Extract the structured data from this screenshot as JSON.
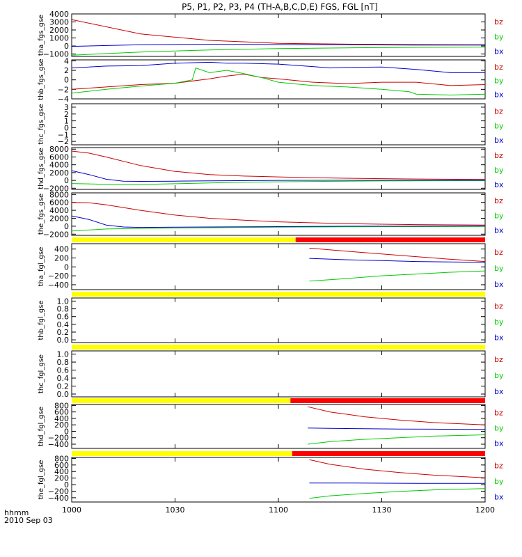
{
  "title": "P5, P1, P2, P3, P4 (TH-A,B,C,D,E) FGS, FGL [nT]",
  "colors": {
    "bx": "#0000cc",
    "by": "#00cc00",
    "bz": "#cc0000",
    "bar_yellow": "#ffff00",
    "bar_red": "#ff0000"
  },
  "footer": {
    "line1": "hhmm",
    "line2": "2010 Sep 03"
  },
  "chart_data": {
    "type": "line",
    "x_axis": {
      "ticks": [
        "1000",
        "1030",
        "1100",
        "1130",
        "1200"
      ],
      "range_minutes": [
        0,
        120
      ]
    },
    "legend": [
      "bz",
      "by",
      "bx"
    ],
    "panels": [
      {
        "name": "tha-fgs-gse",
        "ylabel": "tha_fgs_gse",
        "ylim": [
          -1300,
          4000
        ],
        "yticks": [
          "4000",
          "3000",
          "2000",
          "1000",
          "0",
          "−1000"
        ],
        "ytick_values": [
          4000,
          3000,
          2000,
          1000,
          0,
          -1000
        ],
        "series": [
          {
            "name": "bz",
            "x": [
              0,
              20,
              40,
              60,
              80,
              100,
              120
            ],
            "y": [
              3300,
              1500,
              700,
              330,
              230,
              180,
              150
            ]
          },
          {
            "name": "by",
            "x": [
              0,
              20,
              40,
              60,
              80,
              100,
              120
            ],
            "y": [
              -1150,
              -750,
              -500,
              -330,
              -230,
              -170,
              -140
            ]
          },
          {
            "name": "bx",
            "x": [
              0,
              20,
              40,
              60,
              80,
              100,
              120
            ],
            "y": [
              -50,
              150,
              210,
              180,
              150,
              120,
              120
            ]
          }
        ]
      },
      {
        "name": "thb-fgs-gse",
        "ylabel": "thb_fgs_gse",
        "ylim": [
          -4,
          4.2
        ],
        "yticks": [
          "4",
          "2",
          "0",
          "−2",
          "−4"
        ],
        "ytick_values": [
          4,
          2,
          0,
          -2,
          -4
        ],
        "series": [
          {
            "name": "bz",
            "x": [
              0,
              10,
              20,
              30,
              40,
              45,
              50,
              55,
              60,
              70,
              80,
              90,
              100,
              110,
              120
            ],
            "y": [
              -2,
              -1.5,
              -1,
              -0.7,
              0.2,
              0.8,
              1.2,
              0.5,
              0.2,
              -0.5,
              -0.8,
              -0.5,
              -0.5,
              -1.2,
              -1
            ]
          },
          {
            "name": "by",
            "x": [
              0,
              10,
              20,
              30,
              35,
              36,
              40,
              45,
              50,
              55,
              60,
              70,
              80,
              90,
              98,
              100,
              110,
              120
            ],
            "y": [
              -2.8,
              -2,
              -1.3,
              -0.7,
              0,
              2.5,
              1.5,
              2,
              1.3,
              0.5,
              -0.5,
              -1.2,
              -1.5,
              -2,
              -2.5,
              -3,
              -3.2,
              -3
            ]
          },
          {
            "name": "bx",
            "x": [
              0,
              10,
              20,
              30,
              40,
              45,
              50,
              60,
              70,
              75,
              80,
              90,
              100,
              110,
              120
            ],
            "y": [
              2.5,
              2.9,
              3,
              3.5,
              3.7,
              3.5,
              3.5,
              3.3,
              2.8,
              2.5,
              2.6,
              2.7,
              2.2,
              1.5,
              1.5
            ]
          }
        ]
      },
      {
        "name": "thc-fgs-gse",
        "ylabel": "thc_fgs_gse",
        "ylim": [
          -2.5,
          3.5
        ],
        "yticks": [
          "3",
          "2",
          "1",
          "0",
          "−1",
          "−2"
        ],
        "ytick_values": [
          3,
          2,
          1,
          0,
          -1,
          -2
        ],
        "series": []
      },
      {
        "name": "thd-fgs-gse",
        "ylabel": "thd_fgs_gse",
        "ylim": [
          -2300,
          8400
        ],
        "yticks": [
          "8000",
          "6000",
          "4000",
          "2000",
          "0",
          "−2000"
        ],
        "ytick_values": [
          8000,
          6000,
          4000,
          2000,
          0,
          -2000
        ],
        "series": [
          {
            "name": "bz",
            "x": [
              0,
              5,
              10,
              20,
              30,
              40,
              50,
              60,
              70,
              80,
              90,
              100,
              120
            ],
            "y": [
              7500,
              7000,
              6000,
              3800,
              2300,
              1500,
              1100,
              900,
              700,
              550,
              450,
              350,
              250
            ]
          },
          {
            "name": "by",
            "x": [
              0,
              10,
              20,
              30,
              40,
              50,
              60,
              70,
              80,
              90,
              100,
              120
            ],
            "y": [
              -800,
              -1000,
              -1050,
              -850,
              -650,
              -450,
              -350,
              -270,
              -200,
              -150,
              -110,
              -70
            ]
          },
          {
            "name": "bx",
            "x": [
              0,
              5,
              10,
              15,
              20,
              30,
              40,
              60,
              80,
              100,
              120
            ],
            "y": [
              2500,
              1500,
              300,
              -200,
              -250,
              -200,
              -100,
              0,
              30,
              40,
              50
            ]
          }
        ]
      },
      {
        "name": "the-fgs-gse",
        "ylabel": "the_fgs_gse",
        "ylim": [
          -2300,
          8400
        ],
        "yticks": [
          "8000",
          "6000",
          "4000",
          "2000",
          "0",
          "−2000"
        ],
        "ytick_values": [
          8000,
          6000,
          4000,
          2000,
          0,
          -2000
        ],
        "series": [
          {
            "name": "bz",
            "x": [
              0,
              5,
              10,
              20,
              30,
              40,
              50,
              60,
              70,
              80,
              90,
              100,
              120
            ],
            "y": [
              6000,
              5900,
              5400,
              4000,
              2800,
              2000,
              1500,
              1100,
              850,
              650,
              500,
              400,
              300
            ]
          },
          {
            "name": "by",
            "x": [
              0,
              10,
              20,
              30,
              40,
              50,
              60,
              70,
              80,
              90,
              100,
              120
            ],
            "y": [
              -1200,
              -700,
              -550,
              -450,
              -380,
              -300,
              -250,
              -200,
              -160,
              -120,
              -100,
              -80
            ]
          },
          {
            "name": "bx",
            "x": [
              0,
              5,
              10,
              15,
              20,
              30,
              40,
              60,
              80,
              100,
              120
            ],
            "y": [
              2600,
              1700,
              300,
              -200,
              -300,
              -250,
              -200,
              -100,
              0,
              40,
              60
            ]
          }
        ]
      },
      {
        "name": "tha-fgl-gse",
        "ylabel": "tha_fgl_gse",
        "ylim": [
          -510,
          520
        ],
        "bar_split_minutes": 65,
        "yticks": [
          "400",
          "200",
          "0",
          "−200",
          "−400"
        ],
        "ytick_values": [
          400,
          200,
          0,
          -200,
          -400
        ],
        "series": [
          {
            "name": "bz",
            "x": [
              69,
              80,
              90,
              100,
              110,
              120
            ],
            "y": [
              420,
              350,
              290,
              230,
              170,
              120
            ]
          },
          {
            "name": "by",
            "x": [
              69,
              80,
              90,
              100,
              110,
              120
            ],
            "y": [
              -320,
              -260,
              -200,
              -160,
              -120,
              -90
            ]
          },
          {
            "name": "bx",
            "x": [
              69,
              80,
              90,
              100,
              110,
              120
            ],
            "y": [
              190,
              160,
              140,
              120,
              110,
              100
            ]
          }
        ]
      },
      {
        "name": "thb-fgl-gse",
        "ylabel": "thb_fgl_gse",
        "ylim": [
          -0.07,
          1.08
        ],
        "bar_split_minutes": null,
        "yticks": [
          "1.0",
          "0.8",
          "0.6",
          "0.4",
          "0.2",
          "0.0"
        ],
        "ytick_values": [
          1.0,
          0.8,
          0.6,
          0.4,
          0.2,
          0.0
        ],
        "series": []
      },
      {
        "name": "thc-fgl-gse",
        "ylabel": "thc_fgl_gse",
        "ylim": [
          -0.07,
          1.08
        ],
        "bar_split_minutes": null,
        "yticks": [
          "1.0",
          "0.8",
          "0.6",
          "0.4",
          "0.2",
          "0.0"
        ],
        "ytick_values": [
          1.0,
          0.8,
          0.6,
          0.4,
          0.2,
          0.0
        ],
        "series": []
      },
      {
        "name": "thd-fgl-gse",
        "ylabel": "thd_fgl_gse",
        "ylim": [
          -530,
          830
        ],
        "bar_split_minutes": 63.5,
        "yticks": [
          "800",
          "600",
          "400",
          "200",
          "0",
          "−200",
          "−400"
        ],
        "ytick_values": [
          800,
          600,
          400,
          200,
          0,
          -200,
          -400
        ],
        "series": [
          {
            "name": "bz",
            "x": [
              68.5,
              75,
              85,
              95,
              105,
              120
            ],
            "y": [
              760,
              600,
              450,
              350,
              270,
              200
            ]
          },
          {
            "name": "by",
            "x": [
              68.5,
              75,
              85,
              95,
              105,
              120
            ],
            "y": [
              -400,
              -320,
              -250,
              -200,
              -150,
              -110
            ]
          },
          {
            "name": "bx",
            "x": [
              68.5,
              75,
              85,
              95,
              105,
              120
            ],
            "y": [
              100,
              90,
              80,
              70,
              65,
              60
            ]
          }
        ]
      },
      {
        "name": "the-fgl-gse",
        "ylabel": "the_fgl_gse",
        "ylim": [
          -530,
          830
        ],
        "bar_split_minutes": 64,
        "yticks": [
          "800",
          "600",
          "400",
          "200",
          "0",
          "−200",
          "−400"
        ],
        "ytick_values": [
          800,
          600,
          400,
          200,
          0,
          -200,
          -400
        ],
        "series": [
          {
            "name": "bz",
            "x": [
              69,
              75,
              85,
              95,
              105,
              120
            ],
            "y": [
              760,
              620,
              470,
              370,
              290,
              210
            ]
          },
          {
            "name": "by",
            "x": [
              69,
              75,
              85,
              95,
              105,
              120
            ],
            "y": [
              -420,
              -340,
              -270,
              -210,
              -160,
              -120
            ]
          },
          {
            "name": "bx",
            "x": [
              69,
              80,
              100,
              120
            ],
            "y": [
              50,
              50,
              40,
              40
            ]
          }
        ]
      }
    ]
  }
}
